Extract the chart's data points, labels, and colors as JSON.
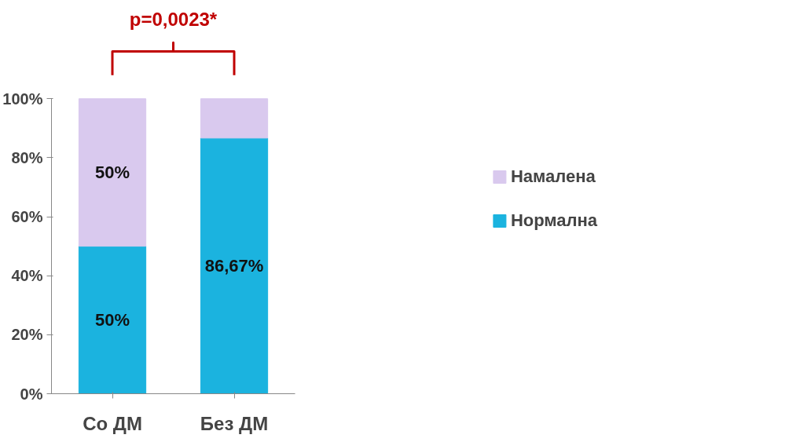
{
  "chart_data": {
    "type": "bar",
    "stacked": true,
    "categories": [
      "Со ДМ",
      "Без ДМ"
    ],
    "series": [
      {
        "name": "Нормална",
        "color": "#1bb3df",
        "values": [
          50,
          86.67
        ],
        "value_labels": [
          "50%",
          "86,67%"
        ]
      },
      {
        "name": "Намалена",
        "color": "#d9c9ee",
        "values": [
          50,
          13.33
        ],
        "value_labels": [
          "50%",
          null
        ]
      }
    ],
    "ylim": [
      0,
      100
    ],
    "yticks": [
      {
        "value": 0,
        "label": "0%"
      },
      {
        "value": 20,
        "label": "20%"
      },
      {
        "value": 40,
        "label": "40%"
      },
      {
        "value": 60,
        "label": "60%"
      },
      {
        "value": 80,
        "label": "80%"
      },
      {
        "value": 100,
        "label": "100%"
      }
    ],
    "annotations": [
      "p=0,0023*"
    ],
    "legend": "right",
    "grid": false
  }
}
